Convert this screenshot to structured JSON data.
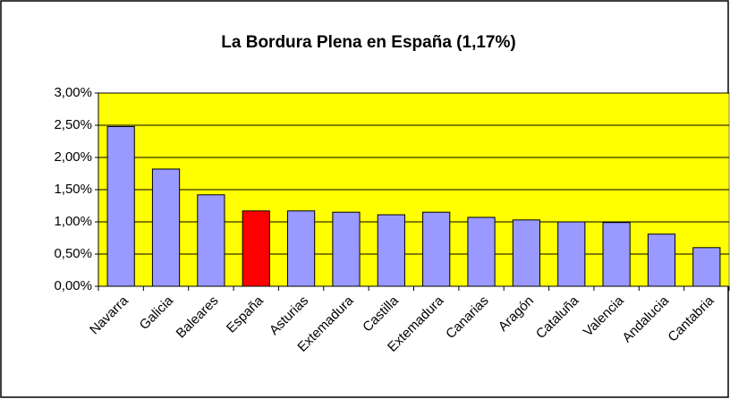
{
  "chart_data": {
    "type": "bar",
    "title": "La Bordura Plena en España (1,17%)",
    "categories": [
      "Navarra",
      "Galicia",
      "Baleares",
      "España",
      "Asturias",
      "Extemadura",
      "Castilla",
      "Extemadura",
      "Canarias",
      "Aragón",
      "Cataluña",
      "Valencia",
      "Andalucia",
      "Cantabria"
    ],
    "values": [
      2.48,
      1.82,
      1.42,
      1.17,
      1.17,
      1.15,
      1.11,
      1.15,
      1.07,
      1.03,
      1.0,
      0.99,
      0.81,
      0.6
    ],
    "colors": [
      "#9999ff",
      "#9999ff",
      "#9999ff",
      "#ff0000",
      "#9999ff",
      "#9999ff",
      "#9999ff",
      "#9999ff",
      "#9999ff",
      "#9999ff",
      "#9999ff",
      "#9999ff",
      "#9999ff",
      "#9999ff"
    ],
    "plot_background": "#ffff00",
    "ylim": [
      0,
      3
    ],
    "yticks": [
      {
        "value": 0,
        "label": "0,00%"
      },
      {
        "value": 0.5,
        "label": "0,50%"
      },
      {
        "value": 1,
        "label": "1,00%"
      },
      {
        "value": 1.5,
        "label": "1,50%"
      },
      {
        "value": 2,
        "label": "2,00%"
      },
      {
        "value": 2.5,
        "label": "2,50%"
      },
      {
        "value": 3,
        "label": "3,00%"
      }
    ],
    "grid": true
  }
}
